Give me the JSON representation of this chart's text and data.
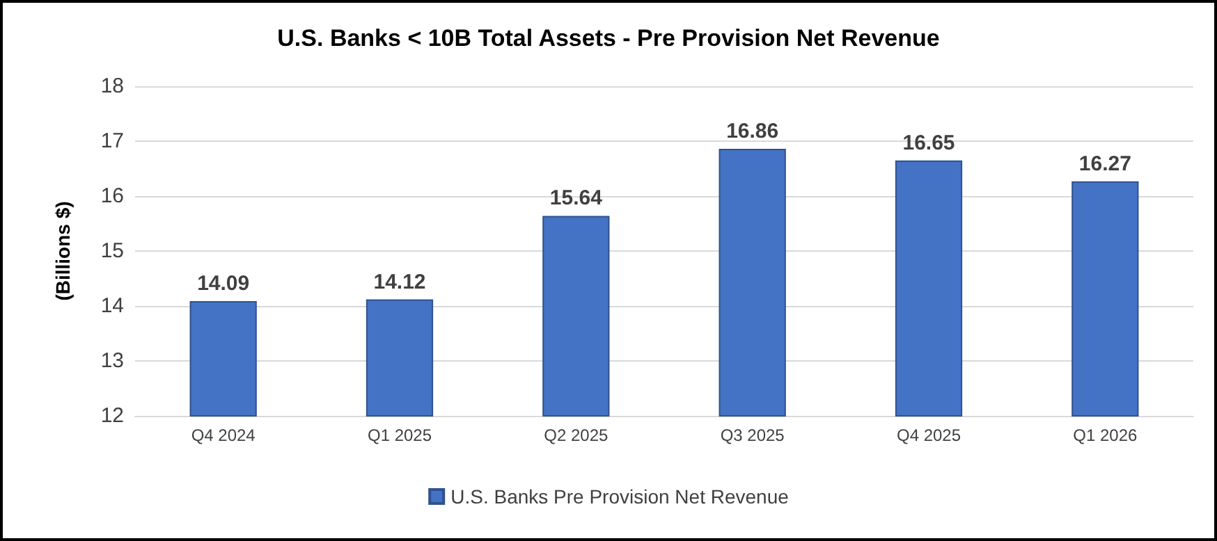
{
  "chart_data": {
    "type": "bar",
    "title": "U.S. Banks < 10B Total Assets - Pre Provision Net Revenue",
    "ylabel": "(Billions $)",
    "categories": [
      "Q4 2024",
      "Q1 2025",
      "Q2 2025",
      "Q3 2025",
      "Q4 2025",
      "Q1 2026"
    ],
    "series": [
      {
        "name": "U.S. Banks Pre Provision Net Revenue",
        "color": "#4472c4",
        "values": [
          14.09,
          14.12,
          15.64,
          16.86,
          16.65,
          16.27
        ]
      }
    ],
    "ylim": [
      12,
      18
    ],
    "yticks": [
      12,
      13,
      14,
      15,
      16,
      17,
      18
    ],
    "grid": "y",
    "legend": "bottom",
    "data_labels": true
  }
}
